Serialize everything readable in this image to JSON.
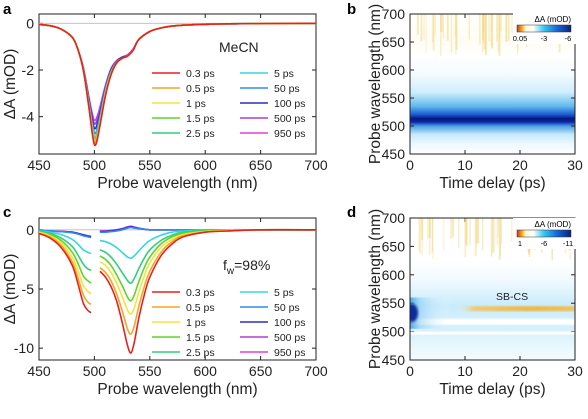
{
  "chart_data": [
    {
      "panel": "a",
      "type": "line",
      "annotation": "MeCN",
      "xlabel": "Probe wavelength (nm)",
      "ylabel": "ΔA (mOD)",
      "xlim": [
        450,
        700
      ],
      "ylim": [
        -5.6,
        0.4
      ],
      "xticks": [
        "450",
        "500",
        "550",
        "600",
        "650",
        "700"
      ],
      "yticks": [
        "0",
        "-2",
        "-4"
      ],
      "x": [
        450,
        460,
        470,
        480,
        485,
        490,
        495,
        498,
        500,
        502,
        505,
        510,
        515,
        520,
        525,
        530,
        535,
        540,
        550,
        560,
        570,
        580,
        600,
        620,
        650,
        700
      ],
      "series": [
        {
          "name": "0.3 ps",
          "color": "#e8211d",
          "values": [
            -0.05,
            -0.1,
            -0.25,
            -0.6,
            -1.1,
            -2.0,
            -3.6,
            -4.7,
            -5.2,
            -5.1,
            -4.4,
            -3.1,
            -2.2,
            -1.7,
            -1.5,
            -1.4,
            -1.15,
            -0.7,
            -0.35,
            -0.2,
            -0.12,
            -0.08,
            -0.04,
            -0.02,
            -0.01,
            0
          ]
        },
        {
          "name": "0.5 ps",
          "color": "#f6a623",
          "values": [
            -0.05,
            -0.1,
            -0.25,
            -0.6,
            -1.1,
            -2.0,
            -3.6,
            -4.6,
            -5.1,
            -5.0,
            -4.35,
            -3.05,
            -2.2,
            -1.7,
            -1.5,
            -1.4,
            -1.15,
            -0.7,
            -0.35,
            -0.2,
            -0.12,
            -0.08,
            -0.04,
            -0.02,
            -0.01,
            0
          ]
        },
        {
          "name": "1 ps",
          "color": "#f2e63a",
          "values": [
            -0.05,
            -0.1,
            -0.25,
            -0.6,
            -1.1,
            -2.0,
            -3.55,
            -4.55,
            -5.05,
            -4.95,
            -4.3,
            -3.0,
            -2.15,
            -1.7,
            -1.5,
            -1.4,
            -1.15,
            -0.7,
            -0.35,
            -0.2,
            -0.12,
            -0.08,
            -0.04,
            -0.02,
            -0.01,
            0
          ]
        },
        {
          "name": "1.5 ps",
          "color": "#5fd42c",
          "values": [
            -0.05,
            -0.1,
            -0.25,
            -0.6,
            -1.1,
            -2.0,
            -3.5,
            -4.5,
            -5.0,
            -4.9,
            -4.25,
            -3.0,
            -2.15,
            -1.7,
            -1.5,
            -1.4,
            -1.15,
            -0.7,
            -0.35,
            -0.2,
            -0.12,
            -0.08,
            -0.04,
            -0.02,
            -0.01,
            0
          ]
        },
        {
          "name": "2.5 ps",
          "color": "#2fd07a",
          "values": [
            -0.05,
            -0.1,
            -0.25,
            -0.6,
            -1.1,
            -2.0,
            -3.5,
            -4.45,
            -4.95,
            -4.85,
            -4.2,
            -2.95,
            -2.1,
            -1.7,
            -1.5,
            -1.4,
            -1.15,
            -0.7,
            -0.35,
            -0.2,
            -0.12,
            -0.08,
            -0.04,
            -0.02,
            -0.01,
            0
          ]
        },
        {
          "name": "5 ps",
          "color": "#36d6e0",
          "values": [
            -0.05,
            -0.1,
            -0.25,
            -0.6,
            -1.1,
            -2.0,
            -3.45,
            -4.4,
            -4.85,
            -4.75,
            -4.1,
            -2.9,
            -2.1,
            -1.7,
            -1.5,
            -1.4,
            -1.15,
            -0.7,
            -0.35,
            -0.2,
            -0.12,
            -0.08,
            -0.04,
            -0.02,
            -0.01,
            0
          ]
        },
        {
          "name": "50 ps",
          "color": "#2c8ee8",
          "values": [
            -0.05,
            -0.1,
            -0.25,
            -0.6,
            -1.1,
            -1.95,
            -3.35,
            -4.25,
            -4.7,
            -4.6,
            -4.0,
            -2.85,
            -2.05,
            -1.65,
            -1.5,
            -1.4,
            -1.15,
            -0.7,
            -0.35,
            -0.2,
            -0.12,
            -0.08,
            -0.04,
            -0.02,
            -0.01,
            0
          ]
        },
        {
          "name": "100 ps",
          "color": "#2a2fc9",
          "values": [
            -0.05,
            -0.1,
            -0.25,
            -0.6,
            -1.1,
            -1.95,
            -3.3,
            -4.1,
            -4.5,
            -4.4,
            -3.85,
            -2.8,
            -2.0,
            -1.65,
            -1.45,
            -1.4,
            -1.15,
            -0.7,
            -0.35,
            -0.2,
            -0.12,
            -0.08,
            -0.04,
            -0.02,
            -0.01,
            0
          ]
        },
        {
          "name": "500 ps",
          "color": "#b13bd6",
          "values": [
            -0.05,
            -0.1,
            -0.25,
            -0.6,
            -1.1,
            -1.9,
            -3.2,
            -3.95,
            -4.3,
            -4.2,
            -3.7,
            -2.7,
            -1.95,
            -1.6,
            -1.45,
            -1.35,
            -1.1,
            -0.7,
            -0.35,
            -0.2,
            -0.12,
            -0.08,
            -0.04,
            -0.02,
            -0.01,
            0
          ]
        },
        {
          "name": "950 ps",
          "color": "#e83fd8",
          "values": [
            -0.05,
            -0.1,
            -0.25,
            -0.6,
            -1.1,
            -1.9,
            -3.15,
            -3.85,
            -4.15,
            -4.05,
            -3.6,
            -2.65,
            -1.95,
            -1.6,
            -1.45,
            -1.35,
            -1.1,
            -0.7,
            -0.35,
            -0.2,
            -0.12,
            -0.08,
            -0.04,
            -0.02,
            -0.01,
            0
          ]
        }
      ]
    },
    {
      "panel": "b",
      "type": "heatmap",
      "xlabel": "Time delay (ps)",
      "ylabel": "Probe wavelength (nm)",
      "xlim": [
        0,
        30
      ],
      "ylim": [
        450,
        700
      ],
      "xticks": [
        "0",
        "10",
        "20",
        "30"
      ],
      "yticks": [
        "450",
        "500",
        "550",
        "600",
        "650",
        "700"
      ],
      "colorbar": {
        "title": "ΔA (mOD)",
        "ticks": [
          "0.05",
          "-3",
          "-6"
        ]
      }
    },
    {
      "panel": "c",
      "type": "line",
      "annotation_base": "f",
      "annotation_sub": "w",
      "annotation_rest": "=98%",
      "xlabel": "Probe wavelength (nm)",
      "ylabel": "ΔA (mOD)",
      "xlim": [
        450,
        700
      ],
      "ylim": [
        -11,
        1
      ],
      "xticks": [
        "450",
        "500",
        "550",
        "600",
        "650",
        "700"
      ],
      "yticks": [
        "0",
        "-5",
        "-10"
      ],
      "gap": [
        497,
        505
      ],
      "x": [
        450,
        460,
        470,
        480,
        485,
        490,
        494,
        497,
        505,
        510,
        515,
        520,
        525,
        530,
        533,
        536,
        540,
        545,
        550,
        560,
        570,
        580,
        600,
        620,
        650,
        700
      ],
      "series": [
        {
          "name": "0.3 ps",
          "color": "#e8211d",
          "values": [
            -0.3,
            -0.7,
            -1.5,
            -3.0,
            -4.5,
            -6.2,
            -6.8,
            -7.0,
            -3.5,
            -4.0,
            -4.8,
            -6.0,
            -7.8,
            -9.8,
            -10.4,
            -9.5,
            -7.5,
            -5.5,
            -4.0,
            -2.2,
            -1.2,
            -0.6,
            -0.2,
            -0.1,
            0,
            0
          ]
        },
        {
          "name": "0.5 ps",
          "color": "#f6a623",
          "values": [
            -0.3,
            -0.6,
            -1.3,
            -2.7,
            -4.0,
            -5.5,
            -6.1,
            -6.3,
            -3.2,
            -3.6,
            -4.3,
            -5.4,
            -6.8,
            -8.4,
            -8.8,
            -8.1,
            -6.5,
            -4.8,
            -3.5,
            -1.9,
            -1.0,
            -0.5,
            -0.2,
            -0.1,
            0,
            0
          ]
        },
        {
          "name": "1 ps",
          "color": "#f2e63a",
          "values": [
            -0.2,
            -0.5,
            -1.1,
            -2.3,
            -3.4,
            -4.7,
            -5.2,
            -5.4,
            -2.7,
            -3.0,
            -3.6,
            -4.5,
            -5.6,
            -6.8,
            -7.1,
            -6.6,
            -5.3,
            -3.9,
            -2.8,
            -1.5,
            -0.8,
            -0.4,
            -0.15,
            -0.05,
            0,
            0
          ]
        },
        {
          "name": "1.5 ps",
          "color": "#5fd42c",
          "values": [
            -0.2,
            -0.4,
            -0.9,
            -1.9,
            -2.8,
            -3.9,
            -4.3,
            -4.5,
            -2.2,
            -2.5,
            -3.0,
            -3.8,
            -4.7,
            -5.7,
            -6.0,
            -5.5,
            -4.4,
            -3.2,
            -2.3,
            -1.2,
            -0.6,
            -0.3,
            -0.1,
            0,
            0,
            0
          ]
        },
        {
          "name": "2.5 ps",
          "color": "#2fd07a",
          "values": [
            -0.15,
            -0.3,
            -0.7,
            -1.4,
            -2.1,
            -2.9,
            -3.3,
            -3.4,
            -1.7,
            -1.9,
            -2.3,
            -2.9,
            -3.6,
            -4.3,
            -4.5,
            -4.1,
            -3.3,
            -2.4,
            -1.7,
            -0.9,
            -0.45,
            -0.2,
            -0.05,
            0,
            0,
            0
          ]
        },
        {
          "name": "5 ps",
          "color": "#36d6e0",
          "values": [
            -0.1,
            -0.2,
            -0.4,
            -0.8,
            -1.2,
            -1.7,
            -1.9,
            -2.0,
            -0.9,
            -1.0,
            -1.2,
            -1.5,
            -1.9,
            -2.3,
            -2.4,
            -2.2,
            -1.8,
            -1.3,
            -0.9,
            -0.45,
            -0.2,
            -0.1,
            0,
            0,
            0,
            0
          ]
        },
        {
          "name": "50 ps",
          "color": "#2c8ee8",
          "values": [
            -0.05,
            -0.1,
            -0.15,
            -0.25,
            -0.35,
            -0.5,
            -0.6,
            -0.65,
            -0.2,
            -0.2,
            -0.15,
            -0.1,
            0.0,
            0.15,
            0.2,
            0.15,
            0.1,
            0.05,
            0.0,
            0,
            0,
            0,
            0,
            0,
            0,
            0
          ]
        },
        {
          "name": "100 ps",
          "color": "#2a2fc9",
          "values": [
            -0.05,
            -0.1,
            -0.15,
            -0.2,
            -0.3,
            -0.45,
            -0.55,
            -0.6,
            -0.15,
            -0.15,
            -0.1,
            -0.05,
            0.05,
            0.2,
            0.25,
            0.2,
            0.12,
            0.05,
            0.0,
            0,
            0,
            0,
            0,
            0,
            0,
            0
          ]
        },
        {
          "name": "500 ps",
          "color": "#b13bd6",
          "values": [
            -0.05,
            -0.1,
            -0.12,
            -0.2,
            -0.3,
            -0.4,
            -0.5,
            -0.55,
            -0.1,
            -0.1,
            -0.05,
            0.0,
            0.1,
            0.25,
            0.3,
            0.22,
            0.14,
            0.05,
            0.0,
            0,
            0,
            0,
            0,
            0,
            0,
            0
          ]
        },
        {
          "name": "950 ps",
          "color": "#e83fd8",
          "values": [
            -0.05,
            -0.1,
            -0.12,
            -0.2,
            -0.3,
            -0.4,
            -0.5,
            -0.55,
            -0.1,
            -0.1,
            -0.05,
            0.0,
            0.1,
            0.25,
            0.3,
            0.22,
            0.14,
            0.05,
            0.0,
            0,
            0,
            0,
            0,
            0,
            0,
            0
          ]
        }
      ]
    },
    {
      "panel": "d",
      "type": "heatmap",
      "annotation": "SB-CS",
      "xlabel": "Time delay (ps)",
      "ylabel": "Probe wavelength (nm)",
      "xlim": [
        0,
        30
      ],
      "ylim": [
        450,
        700
      ],
      "xticks": [
        "0",
        "10",
        "20",
        "30"
      ],
      "yticks": [
        "450",
        "500",
        "550",
        "600",
        "650",
        "700"
      ],
      "colorbar": {
        "title": "ΔA (mOD)",
        "ticks": [
          "1",
          "-6",
          "-11"
        ]
      }
    }
  ]
}
